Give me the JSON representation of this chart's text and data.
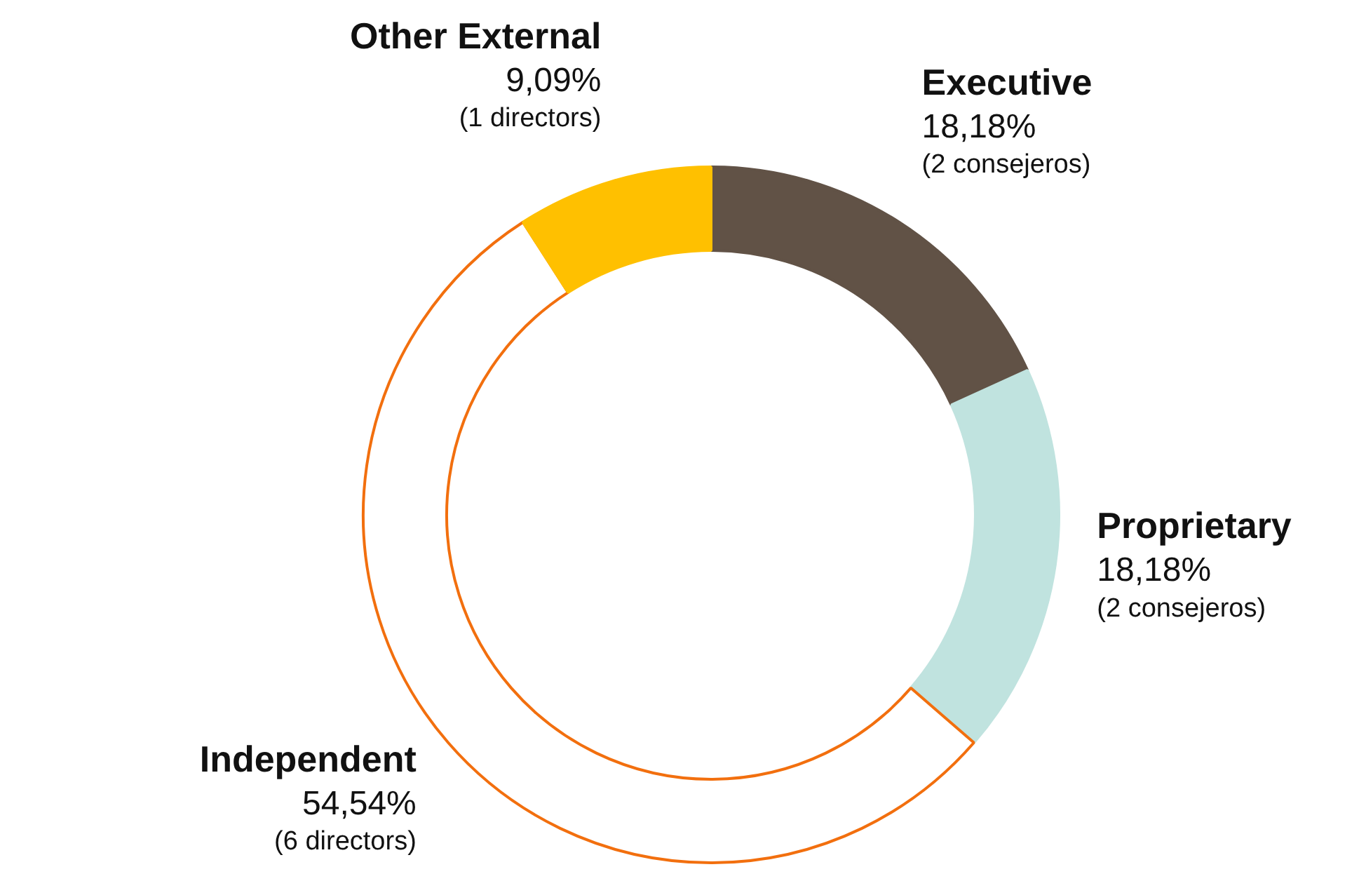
{
  "chart_data": {
    "type": "donut",
    "categories": [
      "Executive",
      "Proprietary",
      "Independent",
      "Other External"
    ],
    "values": [
      18.18,
      18.18,
      54.54,
      9.09
    ],
    "colors": [
      "#615246",
      "#c0e3df",
      "#ffffff",
      "#ffc000"
    ],
    "value_labels": [
      "18,18%",
      "18,18%",
      "54,54%",
      "9,09%"
    ],
    "annotations": [
      {
        "text": "(2 consejeros)",
        "x": "Executive"
      },
      {
        "text": "(2 consejeros)",
        "x": "Proprietary"
      },
      {
        "text": "(6 directors)",
        "x": "Independent"
      },
      {
        "text": "(1 directors)",
        "x": "Other External"
      }
    ],
    "legend": false
  }
}
